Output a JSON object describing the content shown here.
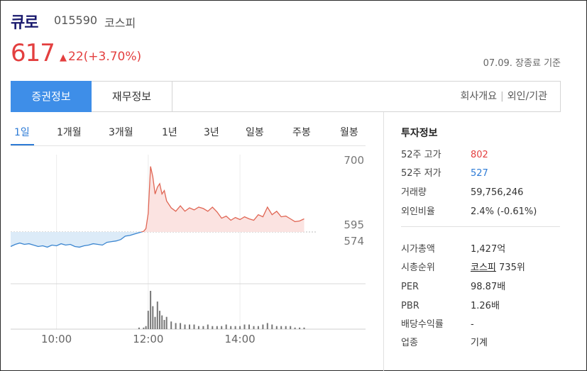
{
  "header": {
    "name": "큐로",
    "code": "015590",
    "market": "코스피"
  },
  "quote": {
    "price": "617",
    "change": "22(+3.70%)",
    "as_of": "07.09. 장종료 기준",
    "up_color": "#e33f3f"
  },
  "tabs": {
    "active": "증권정보",
    "second": "재무정보",
    "right": [
      "회사개요",
      "외인/기관"
    ]
  },
  "period_tabs": [
    "1일",
    "1개월",
    "3개월",
    "1년",
    "3년",
    "일봉",
    "주봉",
    "월봉"
  ],
  "chart_data": {
    "type": "line",
    "title": "",
    "x_ticks": [
      "10:00",
      "12:00",
      "14:00"
    ],
    "y_ticks": [
      "700",
      "595",
      "574"
    ],
    "ylim": [
      520,
      705
    ],
    "baseline": 595,
    "x_range": [
      9,
      15.5
    ],
    "x": [
      9.0,
      9.1,
      9.2,
      9.3,
      9.4,
      9.5,
      9.6,
      9.7,
      9.8,
      9.9,
      10.0,
      10.1,
      10.2,
      10.3,
      10.4,
      10.5,
      10.6,
      10.7,
      10.8,
      10.9,
      11.0,
      11.1,
      11.2,
      11.3,
      11.4,
      11.5,
      11.6,
      11.7,
      11.8,
      11.9,
      11.95,
      12.0,
      12.05,
      12.1,
      12.15,
      12.2,
      12.25,
      12.3,
      12.35,
      12.4,
      12.5,
      12.6,
      12.7,
      12.8,
      12.9,
      13.0,
      13.1,
      13.2,
      13.3,
      13.4,
      13.5,
      13.6,
      13.7,
      13.8,
      13.9,
      14.0,
      14.1,
      14.2,
      14.3,
      14.4,
      14.5,
      14.6,
      14.7,
      14.8,
      14.9,
      15.0,
      15.1,
      15.2,
      15.3,
      15.4
    ],
    "y": [
      574,
      577,
      579,
      577,
      578,
      576,
      574,
      575,
      573,
      576,
      575,
      578,
      576,
      577,
      574,
      573,
      575,
      576,
      578,
      577,
      576,
      580,
      581,
      582,
      584,
      589,
      590,
      592,
      594,
      596,
      600,
      622,
      690,
      675,
      650,
      660,
      665,
      650,
      655,
      640,
      630,
      625,
      633,
      625,
      630,
      627,
      631,
      629,
      625,
      631,
      624,
      615,
      618,
      612,
      616,
      613,
      617,
      614,
      612,
      620,
      617,
      631,
      620,
      625,
      617,
      618,
      614,
      610,
      611,
      614
    ],
    "volume": [
      0,
      0,
      0,
      0,
      0,
      0,
      0,
      0,
      0,
      0,
      0,
      0,
      0,
      0,
      0,
      0,
      0,
      0,
      0,
      0,
      0,
      0,
      0,
      0,
      0,
      0,
      0,
      0,
      1,
      1,
      2,
      12,
      25,
      15,
      8,
      18,
      12,
      9,
      6,
      8,
      5,
      4,
      4,
      3,
      3,
      3,
      2,
      2,
      3,
      2,
      2,
      2,
      3,
      2,
      2,
      2,
      3,
      3,
      2,
      2,
      3,
      4,
      3,
      2,
      2,
      2,
      2,
      1,
      1,
      1
    ],
    "up_color": "#e06654",
    "down_color": "#3a85d0"
  },
  "sidebar": {
    "title": "투자정보",
    "group1": [
      {
        "label": "52주 고가",
        "value": "802",
        "color": "red"
      },
      {
        "label": "52주 저가",
        "value": "527",
        "color": "blue"
      },
      {
        "label": "거래량",
        "value": "59,756,246",
        "color": ""
      },
      {
        "label": "외인비율",
        "value": "2.4% (-0.61%)",
        "color": ""
      }
    ],
    "group2": [
      {
        "label": "시가총액",
        "value": "1,427억"
      },
      {
        "label": "시총순위",
        "value_link": "코스피",
        "value": "735위"
      },
      {
        "label": "PER",
        "value": "98.87배"
      },
      {
        "label": "PBR",
        "value": "1.26배"
      },
      {
        "label": "배당수익률",
        "value": "-"
      },
      {
        "label": "업종",
        "value": "기계"
      }
    ]
  }
}
